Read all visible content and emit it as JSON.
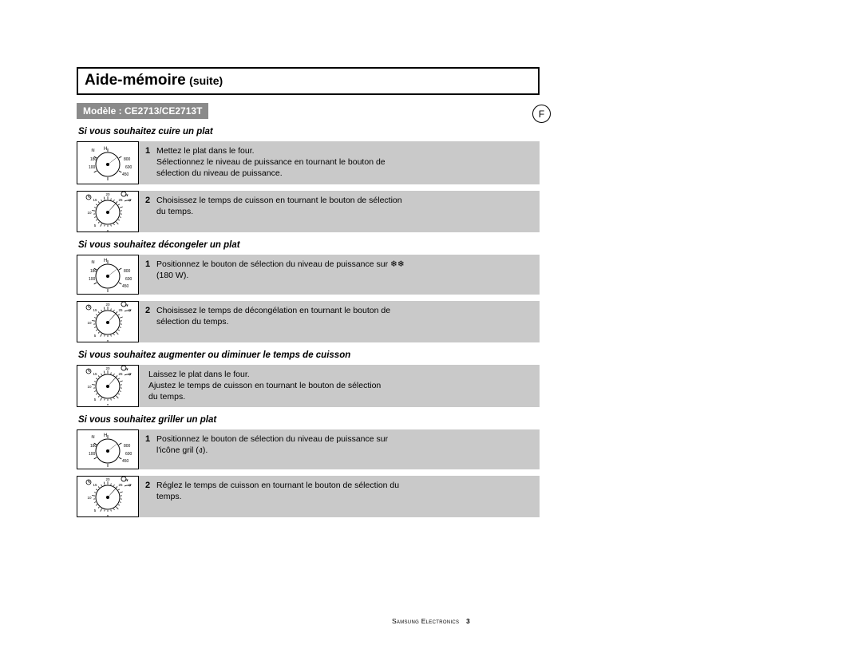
{
  "lang_indicator": "F",
  "title": {
    "main": "Aide-mémoire",
    "sub": "(suite)"
  },
  "model_label": "Modèle : CE2713/CE2713T",
  "footer": {
    "company": "Samsung Electronics",
    "page": "3"
  },
  "colors": {
    "grey_box": "#c9c9c9",
    "badge_bg": "#8a8a8a",
    "badge_fg": "#ffffff",
    "text": "#000000",
    "page_bg": "#ffffff"
  },
  "dial_style": {
    "stroke": "#000000",
    "fill": "#ffffff",
    "tick_count_power": 6,
    "tick_count_timer": 26
  },
  "sections": [
    {
      "title": "Si vous souhaitez cuire un plat",
      "steps": [
        {
          "num": "1",
          "dial": "power",
          "lines": [
            "Mettez le plat dans le four.",
            "Sélectionnez le niveau de puissance en tournant le bouton de",
            "sélection du niveau de puissance."
          ]
        },
        {
          "num": "2",
          "dial": "timer",
          "lines": [
            "Choisissez le temps de cuisson en tournant le bouton de sélection",
            "du temps."
          ]
        }
      ]
    },
    {
      "title": "Si vous souhaitez décongeler un plat",
      "steps": [
        {
          "num": "1",
          "dial": "power",
          "lines": [
            "Positionnez le bouton de sélection du niveau de puissance sur ❄❄",
            "(180 W)."
          ]
        },
        {
          "num": "2",
          "dial": "timer",
          "lines": [
            "Choisissez le temps de décongélation en tournant le bouton de",
            "sélection du temps."
          ]
        }
      ]
    },
    {
      "title": "Si vous souhaitez augmenter ou diminuer le temps de cuisson",
      "steps": [
        {
          "num": "",
          "dial": "timer",
          "lines": [
            "Laissez le plat dans le four.",
            "Ajustez le temps de cuisson en tournant le bouton de sélection",
            "du temps."
          ]
        }
      ]
    },
    {
      "title": "Si vous souhaitez griller un plat",
      "steps": [
        {
          "num": "1",
          "dial": "power",
          "lines": [
            "Positionnez le bouton de sélection du niveau de puissance sur",
            "l'icône gril (ง)."
          ]
        },
        {
          "num": "2",
          "dial": "timer",
          "lines": [
            "Réglez le temps de cuisson en tournant le bouton de sélection du",
            "temps."
          ]
        }
      ]
    }
  ]
}
